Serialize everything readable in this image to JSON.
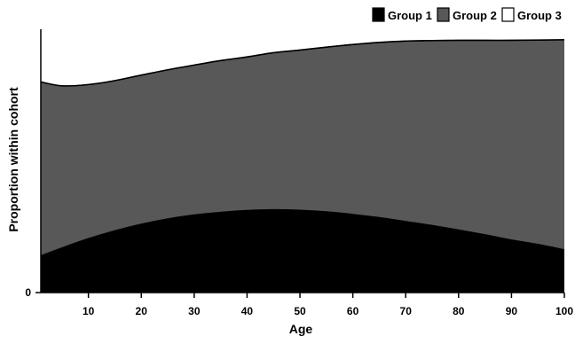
{
  "chart_data": {
    "type": "area",
    "stacked": true,
    "normalized": true,
    "xlabel": "Age",
    "ylabel": "Proportion within cohort",
    "xlim": [
      1,
      100
    ],
    "ylim": [
      0,
      1
    ],
    "x_ticks": [
      10,
      20,
      30,
      40,
      50,
      60,
      70,
      80,
      90,
      100
    ],
    "y_ticks": [
      0
    ],
    "grid": false,
    "legend_position": "top-right",
    "x": [
      1,
      5,
      10,
      15,
      20,
      25,
      30,
      35,
      40,
      45,
      50,
      55,
      60,
      65,
      70,
      75,
      80,
      85,
      90,
      95,
      100
    ],
    "series": [
      {
        "name": "Group 1",
        "color": "#000000",
        "values": [
          0.14,
          0.17,
          0.205,
          0.235,
          0.26,
          0.28,
          0.295,
          0.305,
          0.312,
          0.315,
          0.313,
          0.307,
          0.297,
          0.285,
          0.27,
          0.255,
          0.238,
          0.22,
          0.2,
          0.183,
          0.163
        ]
      },
      {
        "name": "Group 2",
        "color": "#585858",
        "values": [
          0.66,
          0.615,
          0.585,
          0.57,
          0.566,
          0.566,
          0.569,
          0.576,
          0.583,
          0.596,
          0.608,
          0.625,
          0.645,
          0.665,
          0.685,
          0.702,
          0.72,
          0.738,
          0.758,
          0.776,
          0.797
        ]
      },
      {
        "name": "Group 3",
        "color": "#ffffff",
        "values": [
          0.2,
          0.215,
          0.21,
          0.195,
          0.174,
          0.154,
          0.136,
          0.119,
          0.105,
          0.089,
          0.079,
          0.068,
          0.058,
          0.05,
          0.045,
          0.043,
          0.042,
          0.042,
          0.042,
          0.041,
          0.04
        ]
      }
    ]
  }
}
